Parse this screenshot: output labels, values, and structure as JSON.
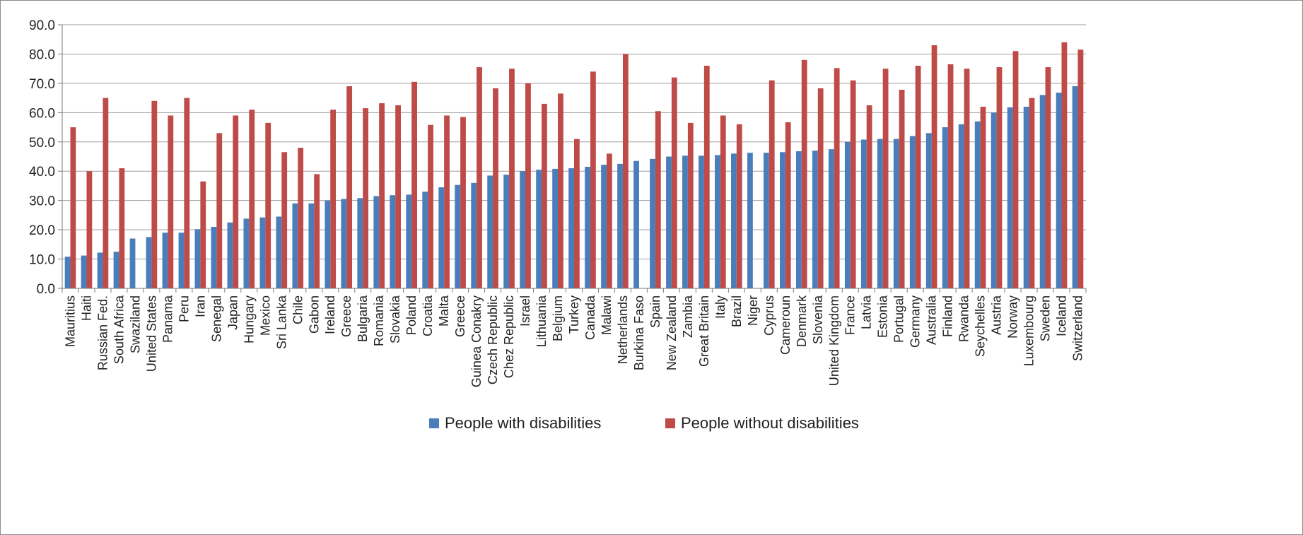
{
  "chart_data": {
    "type": "bar",
    "title": "",
    "xlabel": "",
    "ylabel": "",
    "ylim": [
      0,
      90
    ],
    "yticks": [
      "0.0",
      "10.0",
      "20.0",
      "30.0",
      "40.0",
      "50.0",
      "60.0",
      "70.0",
      "80.0",
      "90.0"
    ],
    "grid": true,
    "legend_position": "bottom",
    "categories": [
      "Mauritius",
      "Haiti",
      "Russian Fed.",
      "South Africa",
      "Swaziland",
      "United States",
      "Panama",
      "Peru",
      "Iran",
      "Senegal",
      "Japan",
      "Hungary",
      "Mexico",
      "Sri Lanka",
      "Chile",
      "Gabon",
      "Ireland",
      "Greece",
      "Bulgaria",
      "Romania",
      "Slovakia",
      "Poland",
      "Croatia",
      "Malta",
      "Greece",
      "Guinea Conakry",
      "Czech Republic",
      "Chez Republic",
      "Israel",
      "Lithuania",
      "Belgium",
      "Turkey",
      "Canada",
      "Malawi",
      "Netherlands",
      "Burkina Faso",
      "Spain",
      "New Zealand",
      "Zambia",
      "Great Britain",
      "Italy",
      "Brazil",
      "Niger",
      "Cyprus",
      "Cameroun",
      "Denmark",
      "Slovenia",
      "United Kingdom",
      "France",
      "Latvia",
      "Estonia",
      "Portugal",
      "Germany",
      "Australia",
      "Finland",
      "Rwanda",
      "Seychelles",
      "Austria",
      "Norway",
      "Luxembourg",
      "Sweden",
      "Iceland",
      "Switzerland"
    ],
    "series": [
      {
        "name": "People with disabilities",
        "color": "#4a7ebb",
        "values": [
          10.8,
          11.2,
          12.2,
          12.5,
          17.0,
          17.5,
          19.0,
          19.0,
          20.2,
          21.0,
          22.5,
          23.8,
          24.2,
          24.5,
          29.0,
          29.0,
          30.0,
          30.5,
          30.8,
          31.5,
          31.8,
          32.0,
          33.0,
          34.5,
          35.3,
          36.0,
          38.5,
          38.8,
          40.0,
          40.5,
          40.8,
          41.0,
          41.5,
          42.2,
          42.5,
          43.5,
          44.2,
          45.0,
          45.3,
          45.3,
          45.5,
          46.0,
          46.3,
          46.3,
          46.5,
          46.8,
          47.0,
          47.5,
          50.0,
          50.8,
          51.0,
          51.0,
          52.0,
          53.0,
          55.0,
          56.0,
          57.0,
          60.0,
          61.8,
          62.0,
          66.0,
          66.8,
          69.0
        ]
      },
      {
        "name": "People without disabilities",
        "color": "#be4b48",
        "values": [
          55.0,
          40.0,
          65.0,
          41.0,
          null,
          64.0,
          59.0,
          65.0,
          36.5,
          53.0,
          59.0,
          61.0,
          56.5,
          46.5,
          48.0,
          39.0,
          61.0,
          69.0,
          61.5,
          63.2,
          62.5,
          70.5,
          55.8,
          59.0,
          58.5,
          75.5,
          68.3,
          75.0,
          70.0,
          63.0,
          66.5,
          51.0,
          74.0,
          46.0,
          80.0,
          null,
          60.5,
          72.0,
          56.5,
          76.0,
          59.0,
          56.0,
          null,
          71.0,
          56.7,
          78.0,
          68.3,
          75.2,
          71.0,
          62.5,
          75.0,
          67.8,
          76.0,
          83.0,
          76.5,
          75.0,
          62.0,
          75.5,
          81.0,
          65.0,
          75.5,
          84.0,
          81.5
        ]
      }
    ]
  }
}
